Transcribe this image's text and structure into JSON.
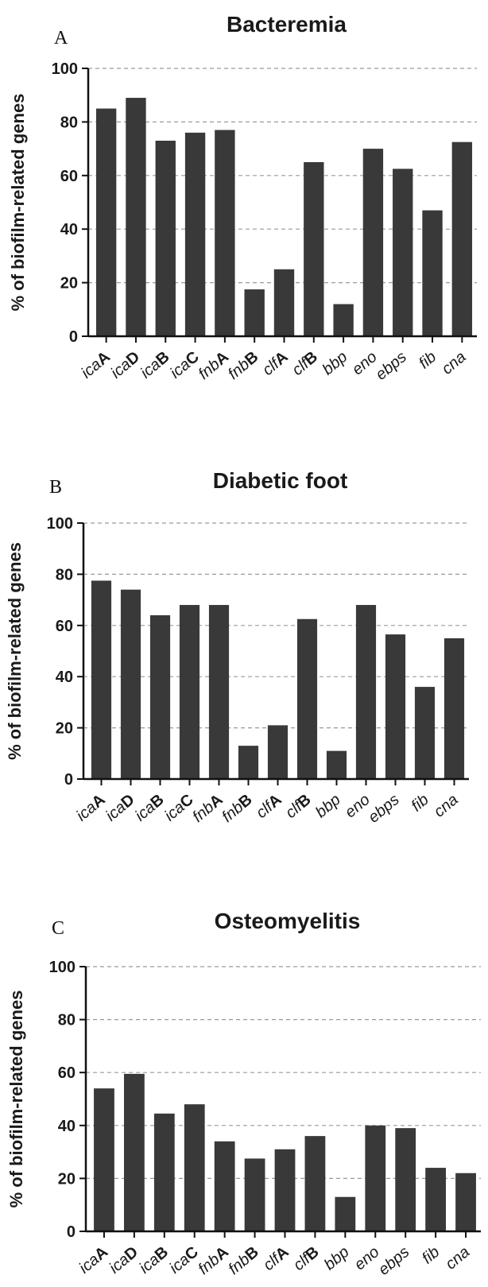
{
  "chart_data": [
    {
      "type": "bar",
      "panel": "A",
      "title": "Bacteremia",
      "ylabel": "% of biofilm-related genes",
      "ylim": [
        0,
        100
      ],
      "yticks": [
        0,
        20,
        40,
        60,
        80,
        100
      ],
      "grid": true,
      "categories": [
        {
          "prefix": "ica",
          "suffix": "A"
        },
        {
          "prefix": "ica",
          "suffix": "D"
        },
        {
          "prefix": "ica",
          "suffix": "B"
        },
        {
          "prefix": "ica",
          "suffix": "C"
        },
        {
          "prefix": "fnb",
          "suffix": "A"
        },
        {
          "prefix": "fnb",
          "suffix": "B"
        },
        {
          "prefix": "clf",
          "suffix": "A"
        },
        {
          "prefix": "clf",
          "suffix": "B"
        },
        {
          "prefix": "bbp",
          "suffix": ""
        },
        {
          "prefix": "eno",
          "suffix": ""
        },
        {
          "prefix": "ebps",
          "suffix": ""
        },
        {
          "prefix": "fib",
          "suffix": ""
        },
        {
          "prefix": "cna",
          "suffix": ""
        }
      ],
      "values": [
        85,
        89,
        73,
        76,
        77,
        17.5,
        25,
        65,
        12,
        70,
        62.5,
        47,
        72.5
      ]
    },
    {
      "type": "bar",
      "panel": "B",
      "title": "Diabetic foot",
      "ylabel": "% of biofilm-related genes",
      "ylim": [
        0,
        100
      ],
      "yticks": [
        0,
        20,
        40,
        60,
        80,
        100
      ],
      "grid": true,
      "categories": [
        {
          "prefix": "ica",
          "suffix": "A"
        },
        {
          "prefix": "ica",
          "suffix": "D"
        },
        {
          "prefix": "ica",
          "suffix": "B"
        },
        {
          "prefix": "ica",
          "suffix": "C"
        },
        {
          "prefix": "fnb",
          "suffix": "A"
        },
        {
          "prefix": "fnb",
          "suffix": "B"
        },
        {
          "prefix": "clf",
          "suffix": "A"
        },
        {
          "prefix": "clf",
          "suffix": "B"
        },
        {
          "prefix": "bbp",
          "suffix": ""
        },
        {
          "prefix": "eno",
          "suffix": ""
        },
        {
          "prefix": "ebps",
          "suffix": ""
        },
        {
          "prefix": "fib",
          "suffix": ""
        },
        {
          "prefix": "cna",
          "suffix": ""
        }
      ],
      "values": [
        77.5,
        74,
        64,
        68,
        68,
        13,
        21,
        62.5,
        11,
        68,
        56.5,
        36,
        55
      ]
    },
    {
      "type": "bar",
      "panel": "C",
      "title": "Osteomyelitis",
      "ylabel": "% of biofilm-related genes",
      "ylim": [
        0,
        100
      ],
      "yticks": [
        0,
        20,
        40,
        60,
        80,
        100
      ],
      "grid": true,
      "categories": [
        {
          "prefix": "ica",
          "suffix": "A"
        },
        {
          "prefix": "ica",
          "suffix": "D"
        },
        {
          "prefix": "ica",
          "suffix": "B"
        },
        {
          "prefix": "ica",
          "suffix": "C"
        },
        {
          "prefix": "fnb",
          "suffix": "A"
        },
        {
          "prefix": "fnb",
          "suffix": "B"
        },
        {
          "prefix": "clf",
          "suffix": "A"
        },
        {
          "prefix": "clf",
          "suffix": "B"
        },
        {
          "prefix": "bbp",
          "suffix": ""
        },
        {
          "prefix": "eno",
          "suffix": ""
        },
        {
          "prefix": "ebps",
          "suffix": ""
        },
        {
          "prefix": "fib",
          "suffix": ""
        },
        {
          "prefix": "cna",
          "suffix": ""
        }
      ],
      "values": [
        54,
        59.5,
        44.5,
        48,
        34,
        27.5,
        31,
        36,
        13,
        40,
        39,
        24,
        22
      ]
    }
  ],
  "colors": {
    "bar": "#393939",
    "axis": "#111111",
    "grid": "#9a9a9a",
    "text": "#1a1a1a"
  }
}
